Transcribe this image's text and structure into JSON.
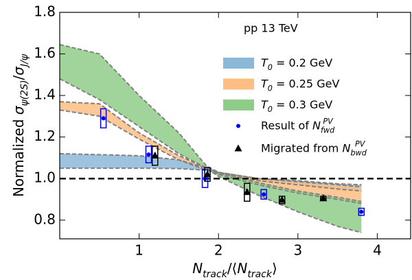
{
  "chart_data": {
    "type": "band",
    "annotation": "pp 13 TeV",
    "xlabel": "Ntrack/⟨Ntrack⟩",
    "ylabel": "Normalized σψ(2S)/σJ/ψ",
    "xlim": [
      0,
      4.42
    ],
    "ylim": [
      0.71,
      1.8
    ],
    "xticks": [
      1,
      2,
      3,
      4
    ],
    "yticks": [
      0.8,
      {
        "value": 1.0,
        "label": "1.0"
      },
      1.2,
      1.4,
      1.6,
      1.8
    ],
    "hline": 1,
    "legend": "upper right",
    "x": [
      0,
      0.5,
      1,
      1.5,
      1.85,
      2,
      2.5,
      3,
      3.5,
      3.8
    ],
    "series": [
      {
        "name": "T0 = 0.2 GeV",
        "color": "#8cb8d8",
        "upper": [
          1.12,
          1.115,
          1.11,
          1.09,
          1.05,
          1.03,
          1.0,
          0.99,
          0.975,
          0.97
        ],
        "lower": [
          1.05,
          1.05,
          1.05,
          1.048,
          1.04,
          1.025,
          0.99,
          0.97,
          0.95,
          0.94
        ]
      },
      {
        "name": "T0 = 0.25 GeV",
        "color": "#fdbe84",
        "upper": [
          1.37,
          1.36,
          1.22,
          1.11,
          1.05,
          1.03,
          1.0,
          0.985,
          0.97,
          0.96
        ],
        "lower": [
          1.33,
          1.3,
          1.19,
          1.09,
          1.04,
          1.02,
          0.97,
          0.93,
          0.9,
          0.88
        ]
      },
      {
        "name": "T0 = 0.3 GeV",
        "color": "#8fcc8a",
        "upper": [
          1.645,
          1.6,
          1.4,
          1.22,
          1.06,
          1.03,
          0.98,
          0.94,
          0.91,
          0.89
        ],
        "lower": [
          1.48,
          1.38,
          1.25,
          1.12,
          1.05,
          1.01,
          0.92,
          0.84,
          0.77,
          0.74
        ]
      }
    ],
    "points": [
      {
        "name": "Result of NfwdPV",
        "color": "#0000ee",
        "marker": "circle",
        "x": [
          0.55,
          1.12,
          1.83,
          2.57,
          3.8
        ],
        "values": [
          1.29,
          1.116,
          1.0,
          0.924,
          0.84
        ],
        "errors": [
          0.046,
          0.04,
          0.043,
          0.023,
          0.017
        ]
      },
      {
        "name": "Migrated from NbwdPV",
        "color": "#000000",
        "marker": "triangle",
        "x": [
          1.2,
          1.86,
          2.36,
          2.8,
          3.32
        ],
        "values": [
          1.11,
          1.02,
          0.934,
          0.897,
          0.904
        ],
        "errors": [
          0.046,
          0.033,
          0.043,
          0.018,
          0.01
        ]
      }
    ]
  }
}
